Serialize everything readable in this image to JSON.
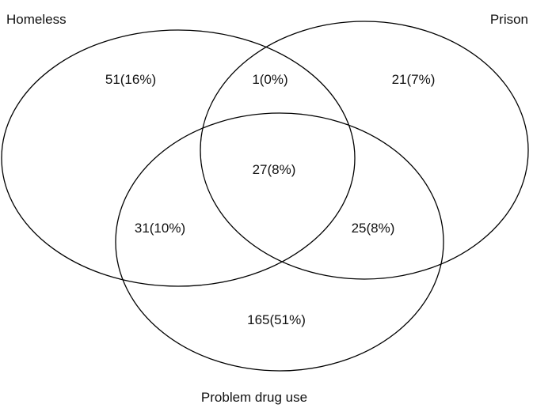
{
  "venn": {
    "sets": [
      {
        "id": "homeless",
        "label": "Homeless"
      },
      {
        "id": "prison",
        "label": "Prison"
      },
      {
        "id": "drug",
        "label": "Problem drug use"
      }
    ],
    "regions": {
      "homeless_only": "51(16%)",
      "homeless_prison": "1(0%)",
      "prison_only": "21(7%)",
      "all_three": "27(8%)",
      "homeless_drug": "31(10%)",
      "prison_drug": "25(8%)",
      "drug_only": "165(51%)"
    },
    "colors": {
      "stroke": "#000000",
      "text": "#111111",
      "background": "#ffffff"
    }
  }
}
